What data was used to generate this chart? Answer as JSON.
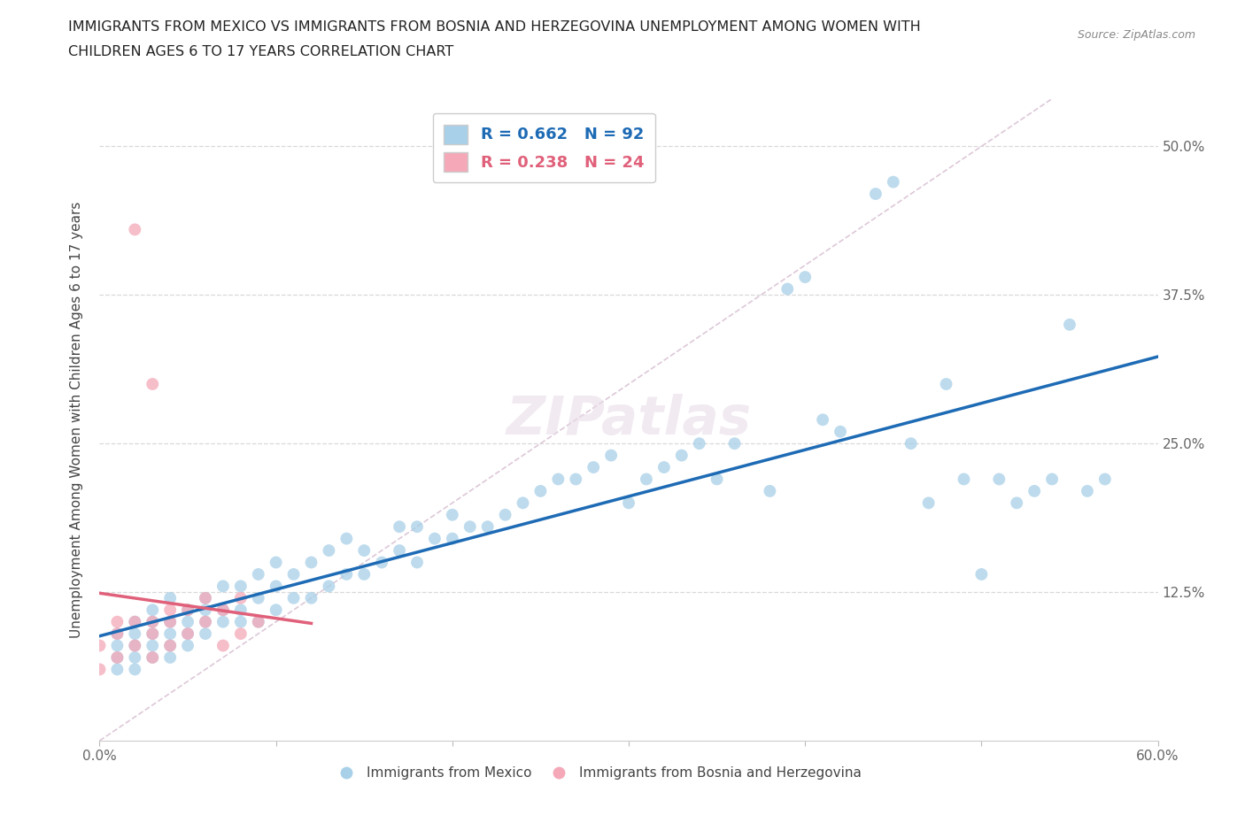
{
  "title_line1": "IMMIGRANTS FROM MEXICO VS IMMIGRANTS FROM BOSNIA AND HERZEGOVINA UNEMPLOYMENT AMONG WOMEN WITH",
  "title_line2": "CHILDREN AGES 6 TO 17 YEARS CORRELATION CHART",
  "source": "Source: ZipAtlas.com",
  "ylabel": "Unemployment Among Women with Children Ages 6 to 17 years",
  "xlim": [
    0.0,
    0.6
  ],
  "ylim": [
    0.0,
    0.54
  ],
  "mexico_R": 0.662,
  "mexico_N": 92,
  "bosnia_R": 0.238,
  "bosnia_N": 24,
  "mexico_color": "#a8d0e8",
  "bosnia_color": "#f4a8b8",
  "mexico_line_color": "#1e6bb5",
  "bosnia_line_color": "#e0607a",
  "diagonal_color": "#ddc8d8",
  "grid_color": "#d8d8d8",
  "mexico_x": [
    0.01,
    0.01,
    0.01,
    0.01,
    0.02,
    0.02,
    0.02,
    0.02,
    0.02,
    0.03,
    0.03,
    0.03,
    0.03,
    0.03,
    0.04,
    0.04,
    0.04,
    0.04,
    0.04,
    0.05,
    0.05,
    0.05,
    0.05,
    0.06,
    0.06,
    0.06,
    0.06,
    0.07,
    0.07,
    0.07,
    0.08,
    0.08,
    0.08,
    0.09,
    0.09,
    0.09,
    0.1,
    0.1,
    0.1,
    0.11,
    0.11,
    0.12,
    0.12,
    0.13,
    0.13,
    0.14,
    0.14,
    0.15,
    0.15,
    0.16,
    0.17,
    0.17,
    0.18,
    0.18,
    0.19,
    0.2,
    0.2,
    0.21,
    0.22,
    0.23,
    0.24,
    0.25,
    0.26,
    0.27,
    0.28,
    0.29,
    0.3,
    0.31,
    0.32,
    0.33,
    0.34,
    0.35,
    0.36,
    0.38,
    0.39,
    0.4,
    0.41,
    0.42,
    0.44,
    0.45,
    0.46,
    0.47,
    0.48,
    0.49,
    0.5,
    0.51,
    0.52,
    0.53,
    0.54,
    0.55,
    0.56,
    0.57
  ],
  "mexico_y": [
    0.06,
    0.07,
    0.08,
    0.09,
    0.06,
    0.07,
    0.08,
    0.09,
    0.1,
    0.07,
    0.08,
    0.09,
    0.1,
    0.11,
    0.07,
    0.08,
    0.09,
    0.1,
    0.12,
    0.08,
    0.09,
    0.1,
    0.11,
    0.09,
    0.1,
    0.11,
    0.12,
    0.1,
    0.11,
    0.13,
    0.1,
    0.11,
    0.13,
    0.1,
    0.12,
    0.14,
    0.11,
    0.13,
    0.15,
    0.12,
    0.14,
    0.12,
    0.15,
    0.13,
    0.16,
    0.14,
    0.17,
    0.14,
    0.16,
    0.15,
    0.16,
    0.18,
    0.15,
    0.18,
    0.17,
    0.17,
    0.19,
    0.18,
    0.18,
    0.19,
    0.2,
    0.21,
    0.22,
    0.22,
    0.23,
    0.24,
    0.2,
    0.22,
    0.23,
    0.24,
    0.25,
    0.22,
    0.25,
    0.21,
    0.38,
    0.39,
    0.27,
    0.26,
    0.46,
    0.47,
    0.25,
    0.2,
    0.3,
    0.22,
    0.14,
    0.22,
    0.2,
    0.21,
    0.22,
    0.35,
    0.21,
    0.22
  ],
  "bosnia_x": [
    0.0,
    0.0,
    0.01,
    0.01,
    0.01,
    0.02,
    0.02,
    0.02,
    0.03,
    0.03,
    0.03,
    0.03,
    0.04,
    0.04,
    0.04,
    0.05,
    0.05,
    0.06,
    0.06,
    0.07,
    0.07,
    0.08,
    0.08,
    0.09
  ],
  "bosnia_y": [
    0.06,
    0.08,
    0.07,
    0.09,
    0.1,
    0.08,
    0.1,
    0.43,
    0.07,
    0.09,
    0.1,
    0.3,
    0.08,
    0.1,
    0.11,
    0.09,
    0.11,
    0.1,
    0.12,
    0.11,
    0.08,
    0.09,
    0.12,
    0.1
  ]
}
